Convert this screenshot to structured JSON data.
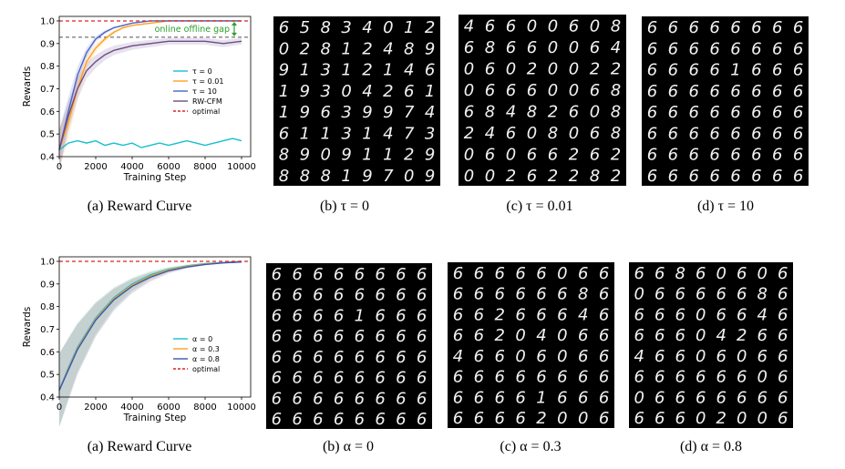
{
  "chart_data": [
    {
      "type": "line",
      "xlabel": "Training Step",
      "ylabel": "Rewards",
      "xlim": [
        0,
        10500
      ],
      "ylim": [
        0.4,
        1.02
      ],
      "xticks": [
        "0",
        "2000",
        "4000",
        "6000",
        "8000",
        "10000"
      ],
      "yticks": [
        "0.4",
        "0.5",
        "0.6",
        "0.7",
        "0.8",
        "0.9",
        "1.0"
      ],
      "annotation": "online offline gap",
      "legend_position": "right",
      "series": [
        {
          "name": "τ = 0",
          "color": "#17becf",
          "x": [
            0,
            500,
            1000,
            1500,
            2000,
            2500,
            3000,
            3500,
            4000,
            4500,
            5000,
            5500,
            6000,
            6500,
            7000,
            7500,
            8000,
            8500,
            9000,
            9500,
            10000
          ],
          "values": [
            0.43,
            0.46,
            0.47,
            0.46,
            0.47,
            0.45,
            0.46,
            0.45,
            0.46,
            0.44,
            0.45,
            0.46,
            0.45,
            0.46,
            0.47,
            0.46,
            0.45,
            0.46,
            0.47,
            0.48,
            0.47
          ]
        },
        {
          "name": "τ = 0.01",
          "color": "#ff9f1c",
          "x": [
            0,
            500,
            1000,
            1500,
            2000,
            2500,
            3000,
            3500,
            4000,
            5000,
            6000,
            8000,
            10000
          ],
          "values": [
            0.43,
            0.55,
            0.7,
            0.82,
            0.88,
            0.92,
            0.95,
            0.97,
            0.98,
            0.99,
            1.0,
            1.0,
            1.0
          ]
        },
        {
          "name": "τ = 10",
          "color": "#4a64c8",
          "x": [
            0,
            500,
            1000,
            1500,
            2000,
            2500,
            3000,
            3500,
            4000,
            5000,
            6000,
            8000,
            10000
          ],
          "values": [
            0.43,
            0.6,
            0.76,
            0.86,
            0.92,
            0.95,
            0.97,
            0.98,
            0.99,
            1.0,
            1.0,
            1.0,
            1.0
          ]
        },
        {
          "name": "RW-CFM",
          "color": "#6b4c8a",
          "x": [
            0,
            500,
            1000,
            1500,
            2000,
            2500,
            3000,
            3500,
            4000,
            5000,
            6000,
            7000,
            8000,
            9000,
            10000
          ],
          "values": [
            0.43,
            0.58,
            0.7,
            0.78,
            0.82,
            0.85,
            0.87,
            0.88,
            0.89,
            0.9,
            0.91,
            0.91,
            0.91,
            0.9,
            0.91
          ]
        },
        {
          "name": "optimal",
          "color": "#d62728",
          "dashed": true,
          "x": [
            0,
            10500
          ],
          "values": [
            1.0,
            1.0
          ]
        }
      ],
      "reference_lines": [
        {
          "y": 0.928,
          "color": "#555555",
          "dashed": true
        }
      ]
    },
    {
      "type": "line",
      "xlabel": "Training Step",
      "ylabel": "Rewards",
      "xlim": [
        0,
        10500
      ],
      "ylim": [
        0.4,
        1.02
      ],
      "xticks": [
        "0",
        "2000",
        "4000",
        "6000",
        "8000",
        "10000"
      ],
      "yticks": [
        "0.4",
        "0.5",
        "0.6",
        "0.7",
        "0.8",
        "0.9",
        "1.0"
      ],
      "legend_position": "right",
      "series": [
        {
          "name": "α = 0",
          "color": "#17becf",
          "x": [
            0,
            500,
            1000,
            2000,
            3000,
            4000,
            5000,
            6000,
            7000,
            8000,
            9000,
            10000
          ],
          "values": [
            0.43,
            0.53,
            0.62,
            0.75,
            0.84,
            0.9,
            0.94,
            0.965,
            0.98,
            0.99,
            0.995,
            1.0
          ]
        },
        {
          "name": "α = 0.3",
          "color": "#ff9f1c",
          "x": [
            0,
            500,
            1000,
            2000,
            3000,
            4000,
            5000,
            6000,
            7000,
            8000,
            9000,
            10000
          ],
          "values": [
            0.43,
            0.525,
            0.615,
            0.745,
            0.835,
            0.895,
            0.935,
            0.962,
            0.978,
            0.988,
            0.994,
            0.998
          ]
        },
        {
          "name": "α = 0.8",
          "color": "#3a57b8",
          "x": [
            0,
            500,
            1000,
            2000,
            3000,
            4000,
            5000,
            6000,
            7000,
            8000,
            9000,
            10000
          ],
          "values": [
            0.43,
            0.52,
            0.61,
            0.74,
            0.83,
            0.89,
            0.93,
            0.958,
            0.975,
            0.986,
            0.993,
            0.997
          ]
        },
        {
          "name": "optimal",
          "color": "#d62728",
          "dashed": true,
          "x": [
            0,
            10500
          ],
          "values": [
            1.0,
            1.0
          ]
        }
      ]
    }
  ],
  "captions": {
    "row1": [
      "(a)  Reward Curve",
      "(b) τ = 0",
      "(c) τ = 0.01",
      "(d) τ = 10"
    ],
    "row2": [
      "(a)  Reward Curve",
      "(b) α = 0",
      "(c) α = 0.3",
      "(d) α = 0.8"
    ]
  },
  "grids": [
    {
      "rows": [
        "65834012",
        "02812489",
        "91312146",
        "19304261",
        "19639974",
        "61131473",
        "89091129",
        "88819709"
      ]
    },
    {
      "rows": [
        "46600608",
        "68660064",
        "06020022",
        "06660068",
        "68482608",
        "24608068",
        "06066262",
        "00262282"
      ]
    },
    {
      "rows": [
        "66666666",
        "66666666",
        "66661666",
        "66666666",
        "66666666",
        "66666666",
        "66666666",
        "66666666"
      ]
    },
    {
      "rows": [
        "66666666",
        "66666666",
        "66661666",
        "66666666",
        "66666666",
        "66666666",
        "66666666",
        "66666666"
      ]
    },
    {
      "rows": [
        "66666066",
        "66666686",
        "66266646",
        "66204066",
        "46606066",
        "66666666",
        "66661666",
        "66662006"
      ]
    },
    {
      "rows": [
        "66860606",
        "06666686",
        "66606646",
        "66604266",
        "46606066",
        "66666606",
        "06666666",
        "66602006"
      ]
    }
  ]
}
